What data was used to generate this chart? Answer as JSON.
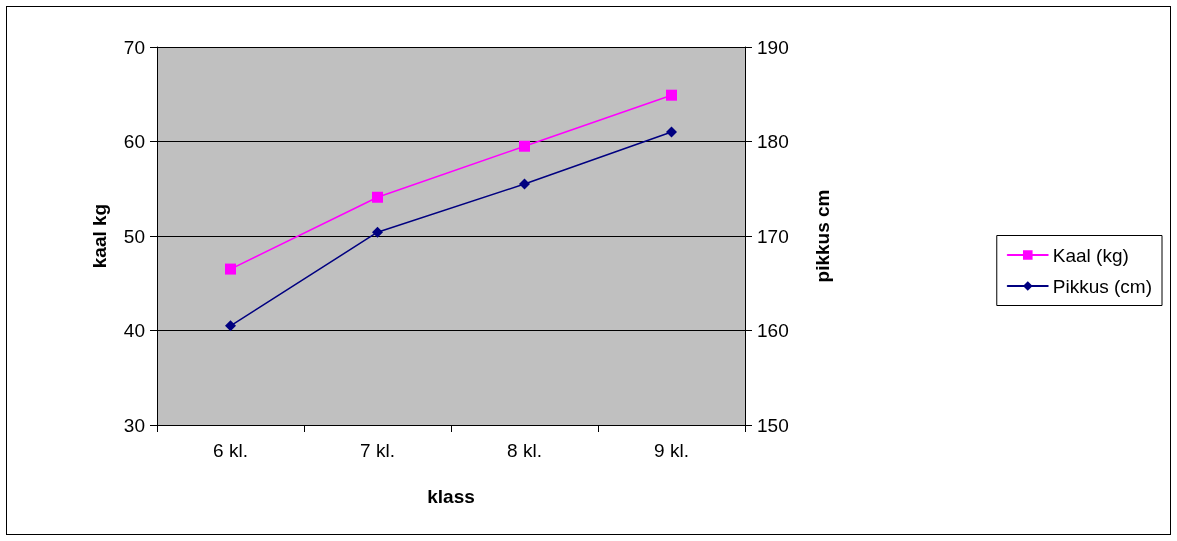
{
  "chart_data": {
    "type": "line",
    "xlabel": "klass",
    "ylabel": "kaal kg",
    "y2label": "pikkus cm",
    "categories": [
      "6 kl.",
      "7 kl.",
      "8 kl.",
      "9 kl."
    ],
    "series": [
      {
        "name": "Kaal (kg)",
        "color": "#ff00ff",
        "marker": "square",
        "values": [
          46.5,
          54.1,
          59.5,
          64.9
        ]
      },
      {
        "name": "Pikkus (cm)",
        "color": "#000080",
        "marker": "diamond",
        "axis": "y2",
        "values": [
          160.5,
          170.4,
          175.5,
          181
        ]
      }
    ],
    "ylim": [
      30,
      70
    ],
    "yticks": [
      30,
      40,
      50,
      60,
      70
    ],
    "y2lim": [
      150,
      190
    ],
    "y2ticks": [
      150,
      160,
      170,
      180,
      190
    ],
    "grid": "y",
    "legend": "right",
    "line_style": "solid"
  }
}
